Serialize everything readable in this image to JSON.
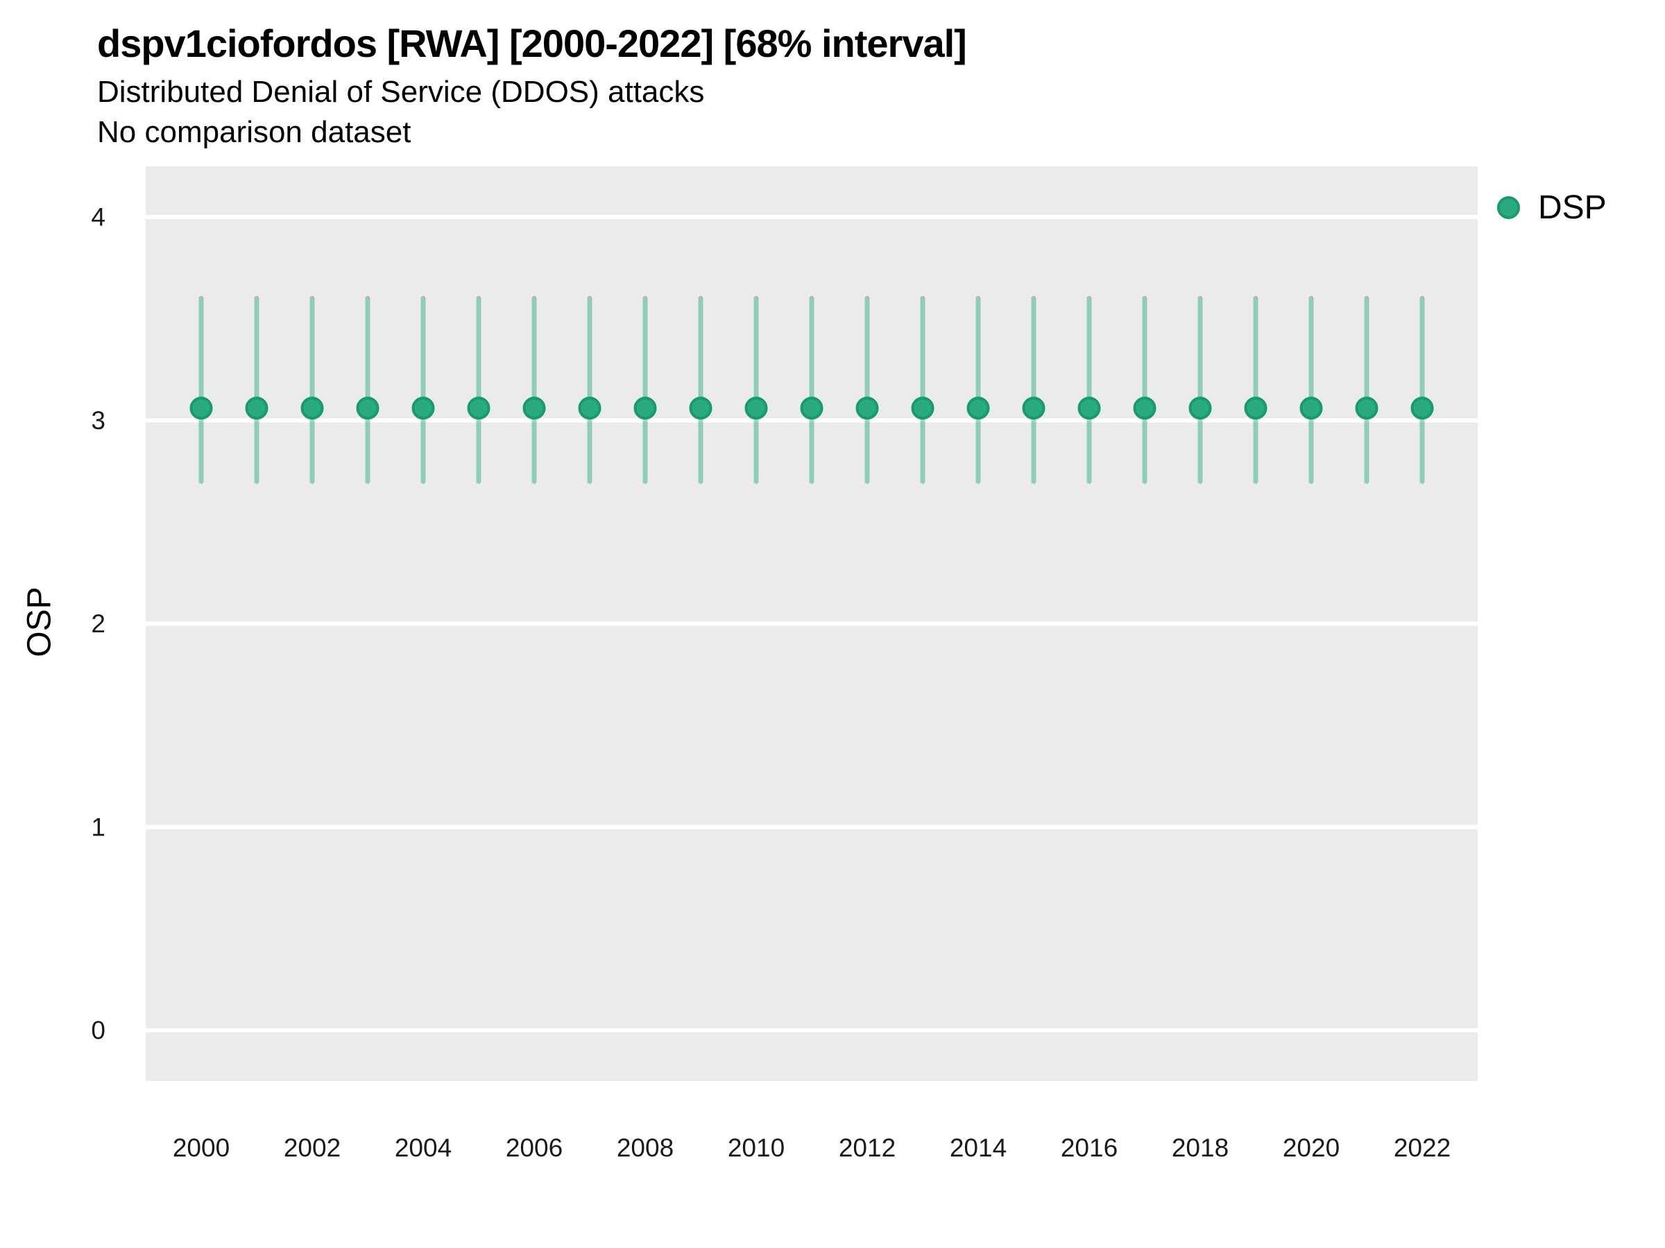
{
  "header": {
    "title": "dspv1ciofordos [RWA] [2000-2022] [68% interval]",
    "subtitle": "Distributed Denial of Service (DDOS) attacks",
    "comparison_note": "No comparison dataset"
  },
  "legend": {
    "position": "right",
    "items": [
      {
        "label": "DSP",
        "marker": "circle",
        "color": "#2BAA80"
      }
    ]
  },
  "y_axis": {
    "label": "OSP",
    "ticks": [
      0,
      1,
      2,
      3,
      4
    ]
  },
  "x_axis": {
    "label": "",
    "tick_labels": [
      2000,
      2002,
      2004,
      2006,
      2008,
      2010,
      2012,
      2014,
      2016,
      2018,
      2020,
      2022
    ]
  },
  "colors": {
    "panel_background": "#EBEBEB",
    "gridline": "#FFFFFF",
    "point_fill": "#2BAA80",
    "point_stroke": "#189A70",
    "interval_bar": "rgba(31,165,121,0.45)"
  },
  "chart_data": {
    "type": "scatter",
    "title": "dspv1ciofordos [RWA] [2000-2022] [68% interval]",
    "subtitle": "Distributed Denial of Service (DDOS) attacks",
    "note": "No comparison dataset",
    "xlabel": "",
    "ylabel": "OSP",
    "xlim": [
      1999,
      2023
    ],
    "ylim": [
      -0.25,
      4.25
    ],
    "grid": "major-horizontal",
    "legend_position": "right",
    "interval_level": "68%",
    "series": [
      {
        "name": "DSP",
        "x": [
          2000,
          2001,
          2002,
          2003,
          2004,
          2005,
          2006,
          2007,
          2008,
          2009,
          2010,
          2011,
          2012,
          2013,
          2014,
          2015,
          2016,
          2017,
          2018,
          2019,
          2020,
          2021,
          2022
        ],
        "y": [
          3.06,
          3.06,
          3.06,
          3.06,
          3.06,
          3.06,
          3.06,
          3.06,
          3.06,
          3.06,
          3.06,
          3.06,
          3.06,
          3.06,
          3.06,
          3.06,
          3.06,
          3.06,
          3.06,
          3.06,
          3.06,
          3.06,
          3.06
        ],
        "y_lower": [
          2.7,
          2.7,
          2.7,
          2.7,
          2.7,
          2.7,
          2.7,
          2.7,
          2.7,
          2.7,
          2.7,
          2.7,
          2.7,
          2.7,
          2.7,
          2.7,
          2.7,
          2.7,
          2.7,
          2.7,
          2.7,
          2.7,
          2.7
        ],
        "y_upper": [
          3.6,
          3.6,
          3.6,
          3.6,
          3.6,
          3.6,
          3.6,
          3.6,
          3.6,
          3.6,
          3.6,
          3.6,
          3.6,
          3.6,
          3.6,
          3.6,
          3.6,
          3.6,
          3.6,
          3.6,
          3.6,
          3.6,
          3.6
        ]
      }
    ]
  }
}
